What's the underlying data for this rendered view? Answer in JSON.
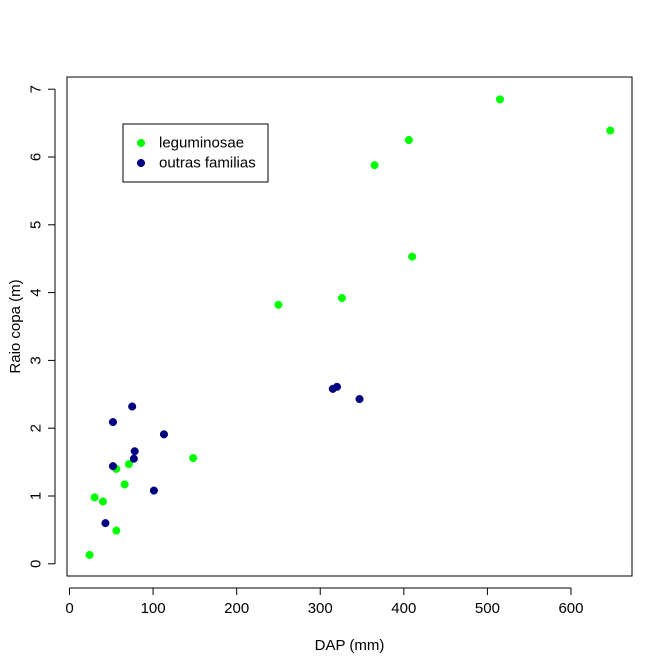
{
  "chart_data": {
    "type": "scatter",
    "title": "",
    "xlabel": "DAP (mm)",
    "ylabel": "Raio copa (m)",
    "xlim": [
      0,
      650
    ],
    "ylim": [
      0,
      7
    ],
    "xticks": [
      0,
      100,
      200,
      300,
      400,
      500,
      600
    ],
    "yticks": [
      0,
      1,
      2,
      3,
      4,
      5,
      6,
      7
    ],
    "grid": false,
    "legend": {
      "position": "top-left",
      "entries": [
        "leguminosae",
        "outras familias"
      ]
    },
    "series": [
      {
        "name": "leguminosae",
        "color": "#00ff00",
        "points": [
          {
            "x": 24,
            "y": 0.13
          },
          {
            "x": 30,
            "y": 0.98
          },
          {
            "x": 40,
            "y": 0.92
          },
          {
            "x": 56,
            "y": 0.49
          },
          {
            "x": 56,
            "y": 1.4
          },
          {
            "x": 66,
            "y": 1.17
          },
          {
            "x": 71,
            "y": 1.47
          },
          {
            "x": 148,
            "y": 1.56
          },
          {
            "x": 250,
            "y": 3.82
          },
          {
            "x": 326,
            "y": 3.92
          },
          {
            "x": 365,
            "y": 5.88
          },
          {
            "x": 406,
            "y": 6.25
          },
          {
            "x": 410,
            "y": 4.53
          },
          {
            "x": 515,
            "y": 6.85
          },
          {
            "x": 647,
            "y": 6.39
          }
        ]
      },
      {
        "name": "outras familias",
        "color": "#000080",
        "points": [
          {
            "x": 43,
            "y": 0.6
          },
          {
            "x": 52,
            "y": 1.44
          },
          {
            "x": 52,
            "y": 2.09
          },
          {
            "x": 75,
            "y": 2.32
          },
          {
            "x": 77,
            "y": 1.55
          },
          {
            "x": 78,
            "y": 1.66
          },
          {
            "x": 101,
            "y": 1.08
          },
          {
            "x": 113,
            "y": 1.91
          },
          {
            "x": 315,
            "y": 2.58
          },
          {
            "x": 320,
            "y": 2.61
          },
          {
            "x": 347,
            "y": 2.43
          }
        ]
      }
    ]
  }
}
